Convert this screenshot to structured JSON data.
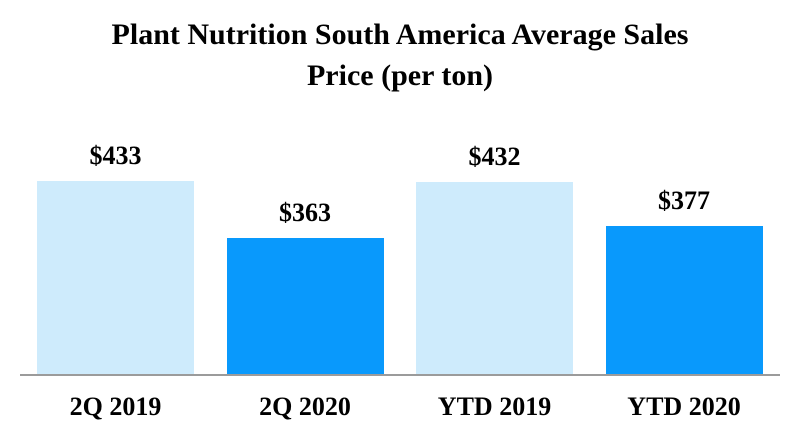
{
  "title": {
    "line1": "Plant Nutrition South America Average Sales",
    "line2": "Price (per ton)"
  },
  "chart_data": {
    "type": "bar",
    "title": "Plant Nutrition South America Average Sales Price (per ton)",
    "categories": [
      "2Q 2019",
      "2Q 2020",
      "YTD 2019",
      "YTD 2020"
    ],
    "values": [
      433,
      363,
      432,
      377
    ],
    "value_labels": [
      "$433",
      "$363",
      "$432",
      "$377"
    ],
    "bar_colors": [
      "#CEEBFC",
      "#0999FC",
      "#CEEBFC",
      "#0999FC"
    ],
    "xlabel": "",
    "ylabel": "",
    "ylim": [
      194,
      445
    ],
    "grid": false,
    "legend": false,
    "axis_line_color": "#9B9B9B"
  }
}
